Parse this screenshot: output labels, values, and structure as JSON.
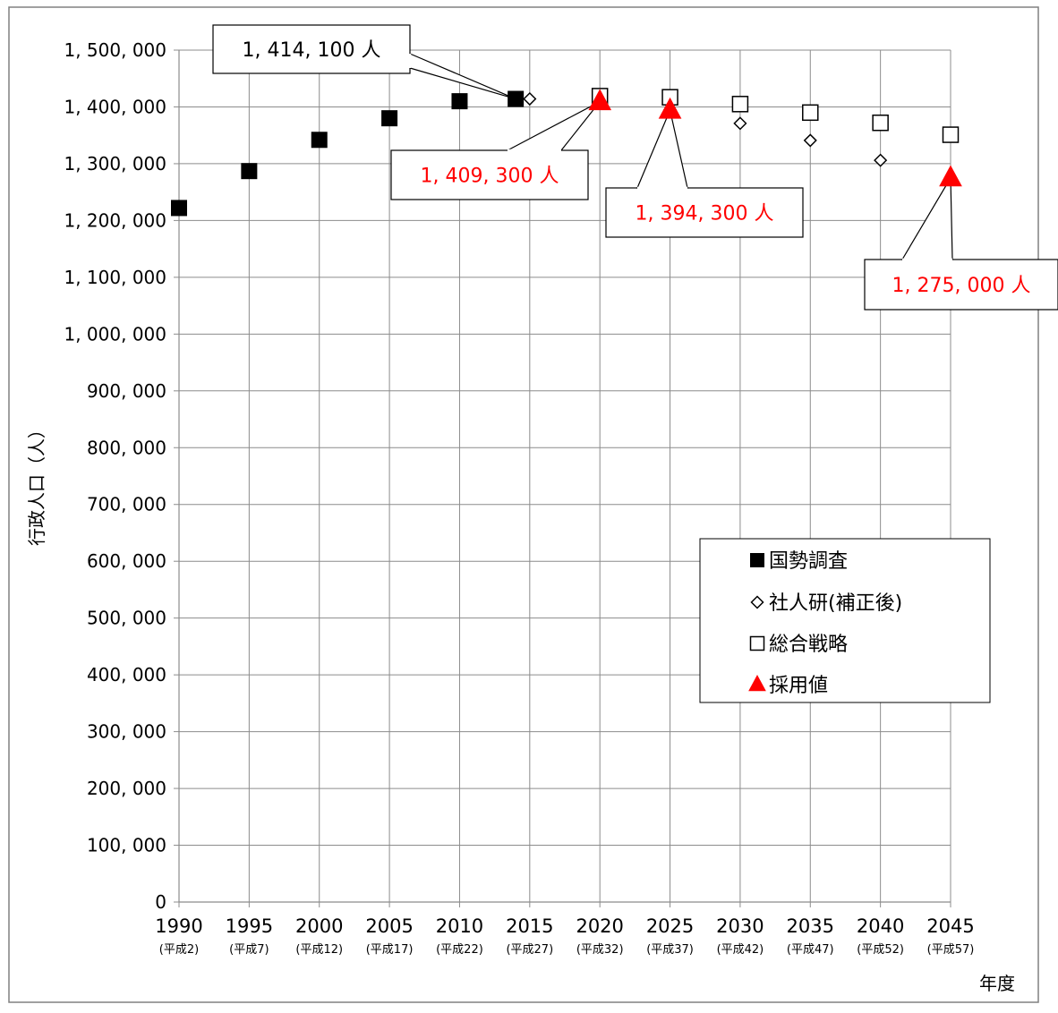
{
  "chart_data": {
    "type": "scatter",
    "ylabel": "行政人口（人）",
    "xlabel": "年度",
    "ylim": [
      0,
      1500000
    ],
    "y_ticks": [
      0,
      100000,
      200000,
      300000,
      400000,
      500000,
      600000,
      700000,
      800000,
      900000,
      1000000,
      1100000,
      1200000,
      1300000,
      1400000,
      1500000
    ],
    "y_tick_labels": [
      "0",
      "100, 000",
      "200, 000",
      "300, 000",
      "400, 000",
      "500, 000",
      "600, 000",
      "700, 000",
      "800, 000",
      "900, 000",
      "1, 000, 000",
      "1, 100, 000",
      "1, 200, 000",
      "1, 300, 000",
      "1, 400, 000",
      "1, 500, 000"
    ],
    "x_categories": [
      "1990",
      "1995",
      "2000",
      "2005",
      "2010",
      "2015",
      "2020",
      "2025",
      "2030",
      "2035",
      "2040",
      "2045"
    ],
    "x_sublabels": [
      "(平成2)",
      "(平成7)",
      "(平成12)",
      "(平成17)",
      "(平成22)",
      "(平成27)",
      "(平成32)",
      "(平成37)",
      "(平成42)",
      "(平成47)",
      "(平成52)",
      "(平成57)"
    ],
    "grid": true,
    "legend_position": "center-right",
    "series": [
      {
        "name": "国勢調査",
        "marker": "filled-square",
        "color": "#000000",
        "points": [
          [
            1990,
            1222000
          ],
          [
            1995,
            1287000
          ],
          [
            2000,
            1342000
          ],
          [
            2005,
            1380000
          ],
          [
            2010,
            1410000
          ],
          [
            2014,
            1414100
          ]
        ]
      },
      {
        "name": "社人研(補正後)",
        "marker": "open-diamond",
        "color": "#000000",
        "points": [
          [
            2015,
            1414100
          ],
          [
            2020,
            1410000
          ],
          [
            2025,
            1395000
          ],
          [
            2030,
            1371000
          ],
          [
            2035,
            1341000
          ],
          [
            2040,
            1306000
          ],
          [
            2045,
            1275000
          ]
        ]
      },
      {
        "name": "総合戦略",
        "marker": "open-square",
        "color": "#000000",
        "points": [
          [
            2020,
            1419000
          ],
          [
            2025,
            1417000
          ],
          [
            2030,
            1405000
          ],
          [
            2035,
            1390000
          ],
          [
            2040,
            1372000
          ],
          [
            2045,
            1351000
          ]
        ]
      },
      {
        "name": "採用値",
        "marker": "filled-triangle",
        "color": "#ff0000",
        "points": [
          [
            2020,
            1409300
          ],
          [
            2025,
            1394300
          ],
          [
            2045,
            1275000
          ]
        ]
      }
    ],
    "annotations": [
      {
        "text": "1, 414, 100 人",
        "color": "#000000",
        "x": 2014,
        "y": 1414100
      },
      {
        "text": "1, 409, 300 人",
        "color": "#ff0000",
        "x": 2020,
        "y": 1409300
      },
      {
        "text": "1, 394, 300 人",
        "color": "#ff0000",
        "x": 2025,
        "y": 1394300
      },
      {
        "text": "1, 275, 000 人",
        "color": "#ff0000",
        "x": 2045,
        "y": 1275000
      }
    ]
  }
}
